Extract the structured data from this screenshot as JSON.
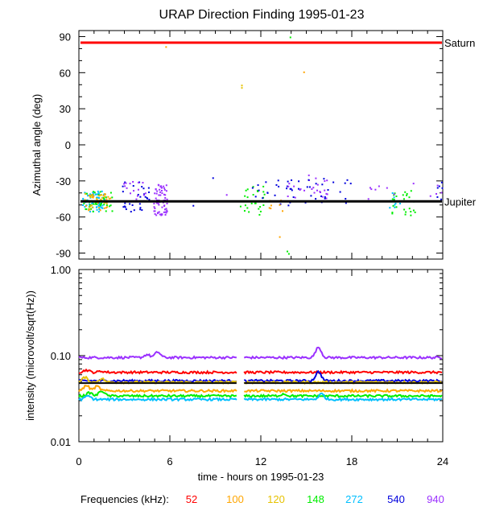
{
  "chart_data": [
    {
      "type": "scatter",
      "title": "URAP Direction Finding  1995-01-23",
      "ylabel": "Azimuthal angle (deg)",
      "xlim": [
        0,
        24
      ],
      "ylim": [
        -95,
        95
      ],
      "yticks": [
        "90",
        "60",
        "30",
        "0",
        "-30",
        "-60",
        "-90"
      ],
      "ytick_values": [
        90,
        60,
        30,
        0,
        -30,
        -60,
        -90
      ],
      "reference_lines": [
        {
          "name": "Saturn",
          "value": 85,
          "color": "#ff0000"
        },
        {
          "name": "Jupiter",
          "value": -47,
          "color": "#000000"
        }
      ],
      "clusters": [
        {
          "color": "#00bfff",
          "x_range": [
            0.2,
            1.8
          ],
          "y_range": [
            -55,
            -38
          ],
          "n": 70
        },
        {
          "color": "#00ee00",
          "x_range": [
            0.2,
            2.2
          ],
          "y_range": [
            -55,
            -38
          ],
          "n": 40
        },
        {
          "color": "#ffa500",
          "x_range": [
            0.3,
            2.2
          ],
          "y_range": [
            -55,
            -40
          ],
          "n": 25
        },
        {
          "color": "#e6c200",
          "x_range": [
            0.3,
            2.0
          ],
          "y_range": [
            -53,
            -40
          ],
          "n": 20
        },
        {
          "color": "#0000dd",
          "x_range": [
            2.8,
            4.6
          ],
          "y_range": [
            -55,
            -30
          ],
          "n": 30
        },
        {
          "color": "#9b30ff",
          "x_range": [
            4.9,
            5.8
          ],
          "y_range": [
            -58,
            -32
          ],
          "n": 70
        },
        {
          "color": "#9b30ff",
          "x_range": [
            2.8,
            4.5
          ],
          "y_range": [
            -45,
            -28
          ],
          "n": 15
        },
        {
          "color": "#00ee00",
          "x_range": [
            10.6,
            12.3
          ],
          "y_range": [
            -58,
            -34
          ],
          "n": 25
        },
        {
          "color": "#0000dd",
          "x_range": [
            11.0,
            14.0
          ],
          "y_range": [
            -50,
            -28
          ],
          "n": 22
        },
        {
          "color": "#9b30ff",
          "x_range": [
            13.5,
            16.5
          ],
          "y_range": [
            -45,
            -24
          ],
          "n": 25
        },
        {
          "color": "#0000dd",
          "x_range": [
            14.0,
            18.0
          ],
          "y_range": [
            -48,
            -25
          ],
          "n": 25
        },
        {
          "color": "#ffa500",
          "x_range": [
            12.5,
            13.8
          ],
          "y_range": [
            -55,
            -45
          ],
          "n": 8
        },
        {
          "color": "#00ee00",
          "x_range": [
            20.6,
            22.3
          ],
          "y_range": [
            -58,
            -35
          ],
          "n": 25
        },
        {
          "color": "#00bfff",
          "x_range": [
            20.4,
            21.2
          ],
          "y_range": [
            -52,
            -38
          ],
          "n": 10
        },
        {
          "color": "#9b30ff",
          "x_range": [
            18.0,
            24.0
          ],
          "y_range": [
            -45,
            -30
          ],
          "n": 12
        },
        {
          "color": "#0000dd",
          "x_range": [
            23.5,
            24.0
          ],
          "y_range": [
            -45,
            -30
          ],
          "n": 6
        }
      ],
      "points": [
        {
          "x": 5.7,
          "y": 82,
          "color": "#ffa500"
        },
        {
          "x": 10.7,
          "y": 50,
          "color": "#e6c200"
        },
        {
          "x": 10.7,
          "y": 48,
          "color": "#e6c200"
        },
        {
          "x": 13.9,
          "y": 90,
          "color": "#00ee00"
        },
        {
          "x": 14.8,
          "y": 61,
          "color": "#ffa500"
        },
        {
          "x": 13.2,
          "y": -76,
          "color": "#ffa500"
        },
        {
          "x": 13.7,
          "y": -88,
          "color": "#00ee00"
        },
        {
          "x": 13.8,
          "y": -90,
          "color": "#00ee00"
        },
        {
          "x": 7.5,
          "y": -50,
          "color": "#0000dd"
        },
        {
          "x": 8.8,
          "y": -27,
          "color": "#0000dd"
        },
        {
          "x": 9.7,
          "y": -41,
          "color": "#9b30ff"
        }
      ]
    },
    {
      "type": "line",
      "ylabel": "intensity (microvolt/sqrt(Hz))",
      "xlabel": "time - hours on 1995-01-23",
      "xlim": [
        0,
        24
      ],
      "ylim_log": [
        0.01,
        1.0
      ],
      "yticks": [
        "1.00",
        "0.10",
        "0.01"
      ],
      "ytick_values": [
        1.0,
        0.1,
        0.01
      ],
      "xticks": [
        "0",
        "6",
        "12",
        "18",
        "24"
      ],
      "xtick_values": [
        0,
        6,
        12,
        18,
        24
      ],
      "gap": [
        10.4,
        10.9
      ],
      "series": [
        {
          "name": "940",
          "color": "#9b30ff",
          "base": 0.095,
          "spikes": [
            [
              4.5,
              0.103
            ],
            [
              5.2,
              0.11
            ],
            [
              15.8,
              0.125
            ]
          ]
        },
        {
          "name": "52",
          "color": "#ff0000",
          "base": 0.064,
          "spikes": [
            [
              0.5,
              0.068
            ],
            [
              1.5,
              0.066
            ]
          ]
        },
        {
          "name": "540",
          "color": "#0000dd",
          "base": 0.051,
          "spikes": [
            [
              15.8,
              0.065
            ]
          ]
        },
        {
          "name": "120",
          "color": "#e6c200",
          "base": 0.049,
          "spikes": [
            [
              0.4,
              0.056
            ],
            [
              1.5,
              0.054
            ]
          ]
        },
        {
          "name": "100",
          "color": "#ffa500",
          "base": 0.039,
          "spikes": [
            [
              0.5,
              0.045
            ],
            [
              1.2,
              0.044
            ]
          ]
        },
        {
          "name": "148",
          "color": "#00ee00",
          "base": 0.034,
          "spikes": [
            [
              0.7,
              0.037
            ],
            [
              1.5,
              0.039
            ],
            [
              13.5,
              0.036
            ]
          ]
        },
        {
          "name": "272",
          "color": "#00bfff",
          "base": 0.031,
          "spikes": [
            [
              0.6,
              0.034
            ],
            [
              16.0,
              0.036
            ]
          ]
        }
      ],
      "reference_lines": [
        {
          "name": "Jupiter",
          "value": 0.048,
          "color": "#000000"
        }
      ]
    }
  ],
  "legend": {
    "label": "Frequencies (kHz):",
    "items": [
      {
        "label": "52",
        "color": "#ff0000"
      },
      {
        "label": "100",
        "color": "#ffa500"
      },
      {
        "label": "120",
        "color": "#e6c200"
      },
      {
        "label": "148",
        "color": "#00ee00"
      },
      {
        "label": "272",
        "color": "#00bfff"
      },
      {
        "label": "540",
        "color": "#0000dd"
      },
      {
        "label": "940",
        "color": "#9b30ff"
      }
    ]
  }
}
